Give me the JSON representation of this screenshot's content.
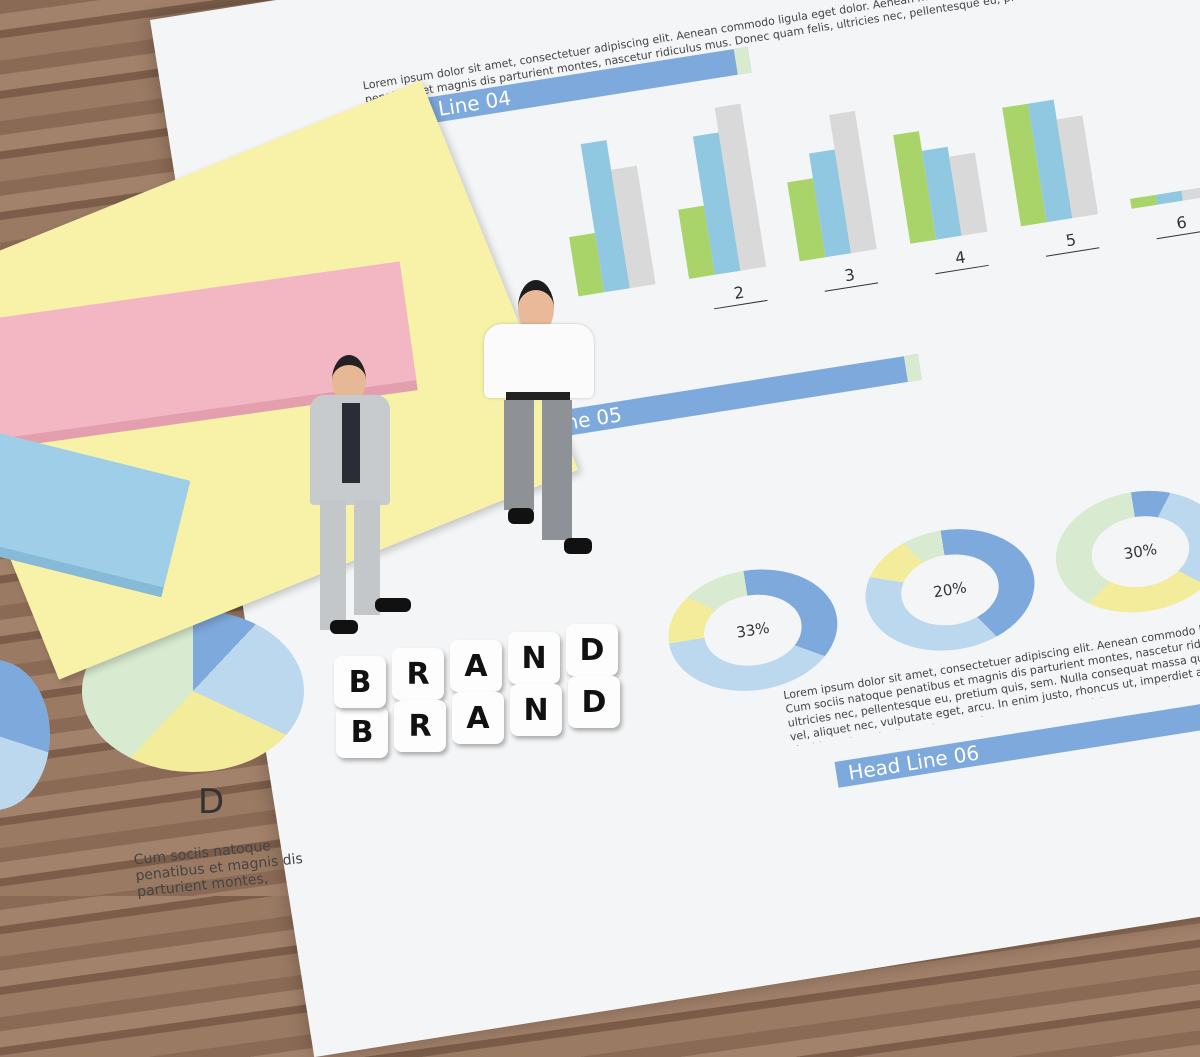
{
  "scene": {
    "headlines": [
      "Head Line 04",
      "Head Line 05",
      "Head Line 06"
    ],
    "bar_group_labels": [
      "2",
      "3",
      "4",
      "5",
      "6"
    ],
    "donut_labels": [
      "33%",
      "20%",
      "30%"
    ],
    "pie_label": "D",
    "lorem": "Lorem ipsum dolor sit amet, consectetuer adipiscing elit. Aenean commodo ligula eget dolor. Aenean massa. Cum sociis natoque penatibus et magnis dis parturient montes, nascetur ridiculus mus. Donec quam felis, ultricies nec, pellentesque eu, pretium quis, sem. Nulla consequat massa quis enim. Donec pede justo, fringilla vel, aliquet nec, vulputate eget, arcu. In enim justo, rhoncus ut, imperdiet a, venenatis vitae, justo. Integer tincidunt. Cras dapibus. Vivamus elementum semper nisi. Aenean vulputate.",
    "pie_caption": "Cum sociis natoque penatibus et magnis dis parturient montes,",
    "cube_rows": [
      [
        "B",
        "R",
        "A",
        "N",
        "D"
      ],
      [
        "B",
        "R",
        "A",
        "N",
        "D"
      ]
    ],
    "colors": {
      "blue": "#7ea9dc",
      "green": "#a8d46a",
      "teal": "#8fc8e0",
      "grey": "#d9d9d9",
      "yellow_note": "#f7f2a8",
      "pink_note": "#f3b7c4",
      "blue_note": "#9fcfe8"
    }
  }
}
